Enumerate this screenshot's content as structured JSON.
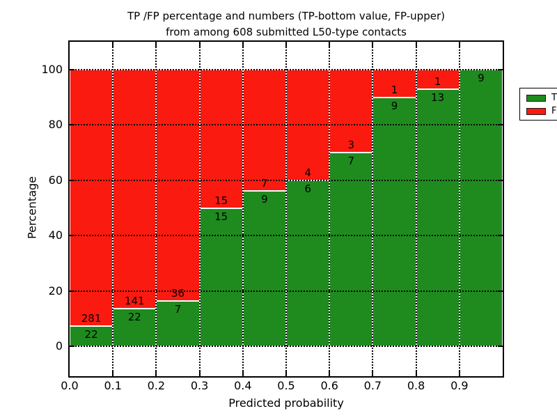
{
  "title": {
    "line1": "TP /FP percentage and numbers (TP-bottom value, FP-upper)",
    "line2": "from among 608 submitted L50-type contacts"
  },
  "x_axis": {
    "label": "Predicted probability",
    "tick_labels": [
      "0.0",
      "0.1",
      "0.2",
      "0.3",
      "0.4",
      "0.5",
      "0.6",
      "0.7",
      "0.8",
      "0.9"
    ]
  },
  "y_axis": {
    "label": "Percentage",
    "tick_labels": [
      "0",
      "20",
      "40",
      "60",
      "80",
      "100"
    ],
    "tick_values": [
      0,
      20,
      40,
      60,
      80,
      100
    ]
  },
  "legend": {
    "items": [
      {
        "label": "TP",
        "color": "#1f8b1f"
      },
      {
        "label": "FP",
        "color": "#fb1a10"
      }
    ]
  },
  "chart_data": {
    "type": "bar",
    "stacked": true,
    "normalized": "percent (each bin TP+FP = 100%)",
    "title": "TP /FP percentage and numbers (TP-bottom value, FP-upper) from among 608 submitted L50-type contacts",
    "xlabel": "Predicted probability",
    "ylabel": "Percentage",
    "bin_edges": [
      0.0,
      0.1,
      0.2,
      0.3,
      0.4,
      0.5,
      0.6,
      0.7,
      0.8,
      0.9,
      1.0
    ],
    "categories": [
      "0.0-0.1",
      "0.1-0.2",
      "0.2-0.3",
      "0.3-0.4",
      "0.4-0.5",
      "0.5-0.6",
      "0.6-0.7",
      "0.7-0.8",
      "0.8-0.9",
      "0.9-1.0"
    ],
    "series": [
      {
        "name": "TP",
        "color": "#1f8b1f",
        "counts": [
          22,
          22,
          7,
          15,
          9,
          6,
          7,
          9,
          13,
          9
        ]
      },
      {
        "name": "FP",
        "color": "#fb1a10",
        "counts": [
          281,
          141,
          36,
          15,
          7,
          4,
          3,
          1,
          1,
          0
        ]
      }
    ],
    "tp_percent": [
      7.26,
      13.5,
      16.28,
      50.0,
      56.25,
      60.0,
      70.0,
      90.0,
      92.86,
      100.0
    ],
    "total_contacts": 608,
    "xlim": [
      0.0,
      1.0
    ],
    "ylim": [
      -10.8,
      110.0
    ],
    "grid": true,
    "gridline_style": "dotted black, bars edged white",
    "legend_position": "upper right"
  }
}
